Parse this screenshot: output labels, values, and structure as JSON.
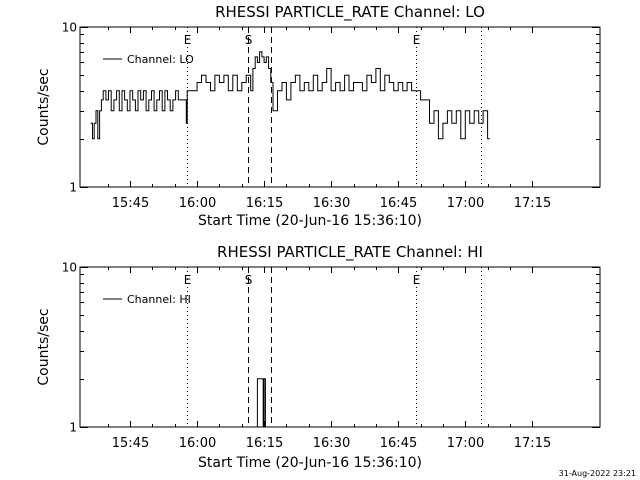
{
  "timestamp": "31-Aug-2022 23:21",
  "chart_data": [
    {
      "type": "line",
      "title": "RHESSI PARTICLE_RATE Channel: LO",
      "xlabel": "Start Time (20-Jun-16 15:36:10)",
      "ylabel": "Counts/sec",
      "yscale": "log",
      "ylim": [
        1,
        10
      ],
      "yticks": [
        {
          "value": 1,
          "label": "1"
        },
        {
          "value": 10,
          "label": "10"
        }
      ],
      "xlim_minutes": [
        36.2,
        100.5
      ],
      "xticks": [
        {
          "value": 45,
          "label": "15:45"
        },
        {
          "value": 60,
          "label": "16:00"
        },
        {
          "value": 75,
          "label": "16:15"
        },
        {
          "value": 90,
          "label": "16:30"
        },
        {
          "value": 105,
          "label": "16:45"
        },
        {
          "value": 120,
          "label": "17:00"
        },
        {
          "value": 135,
          "label": "17:15"
        }
      ],
      "legend": {
        "label": "Channel: LO",
        "position": "top-left"
      },
      "markers": [
        {
          "minute": 57.7,
          "label": "E",
          "style": "dotted"
        },
        {
          "minute": 71.5,
          "label": "S",
          "style": "dashed"
        },
        {
          "minute": 76.5,
          "label": "",
          "style": "dashed"
        },
        {
          "minute": 109.0,
          "label": "E",
          "style": "dotted"
        },
        {
          "minute": 123.5,
          "label": "",
          "style": "dotted"
        }
      ],
      "series": [
        {
          "name": "Channel: LO",
          "x": [
            36.2,
            36.6,
            37.0,
            37.4,
            37.8,
            38.2,
            38.6,
            39.0,
            39.6,
            40.2,
            40.8,
            41.4,
            42.0,
            42.6,
            43.2,
            43.8,
            44.4,
            45.0,
            45.6,
            46.2,
            46.8,
            47.4,
            48.0,
            48.6,
            49.2,
            49.8,
            50.4,
            51.0,
            51.6,
            52.2,
            52.8,
            53.4,
            54.0,
            54.6,
            55.2,
            55.8,
            56.4,
            57.0,
            57.6,
            57.8,
            58.4,
            59.0,
            60.0,
            61.0,
            62.0,
            63.0,
            64.0,
            65.0,
            66.0,
            67.0,
            68.0,
            69.0,
            70.0,
            71.0,
            72.0,
            72.5,
            73.0,
            73.5,
            74.0,
            74.5,
            75.0,
            75.5,
            76.0,
            76.5,
            77.0,
            78.0,
            79.0,
            80.0,
            81.0,
            82.0,
            83.0,
            84.0,
            85.0,
            86.0,
            87.0,
            88.0,
            89.0,
            90.0,
            91.0,
            92.0,
            93.0,
            94.0,
            95.0,
            96.0,
            97.0,
            98.0,
            99.0,
            100.0,
            101.0,
            102.0,
            103.0,
            104.0,
            105.0,
            106.0,
            107.0,
            108.0,
            108.8,
            109.2,
            110.0,
            111.0,
            112.0,
            113.0,
            114.0,
            115.0,
            116.0,
            117.0,
            118.0,
            119.0,
            120.0,
            121.0,
            122.0,
            123.0,
            124.0,
            125.0,
            125.5
          ],
          "y": [
            2.5,
            2.0,
            2.5,
            3.0,
            2.0,
            3.0,
            3.5,
            4.0,
            3.5,
            4.0,
            3.0,
            3.5,
            4.0,
            3.0,
            4.0,
            3.5,
            3.0,
            4.0,
            3.5,
            3.0,
            4.0,
            3.5,
            4.0,
            3.0,
            3.5,
            4.0,
            3.0,
            3.5,
            4.0,
            3.0,
            4.0,
            3.5,
            3.0,
            3.5,
            4.0,
            3.5,
            3.5,
            3.5,
            2.5,
            4.0,
            4.0,
            4.0,
            4.5,
            5.0,
            4.5,
            4.0,
            5.0,
            4.5,
            5.0,
            4.0,
            5.0,
            4.0,
            4.5,
            5.0,
            4.0,
            5.5,
            6.5,
            6.0,
            7.0,
            6.5,
            6.0,
            6.5,
            5.5,
            4.5,
            3.0,
            4.0,
            4.5,
            3.5,
            4.5,
            5.0,
            4.0,
            4.5,
            4.0,
            5.0,
            4.0,
            4.5,
            5.5,
            4.0,
            4.5,
            4.0,
            5.0,
            4.0,
            4.5,
            4.5,
            4.0,
            5.0,
            4.5,
            5.5,
            4.0,
            5.0,
            4.5,
            4.0,
            4.5,
            4.0,
            4.5,
            4.0,
            4.0,
            4.0,
            3.5,
            3.5,
            2.5,
            3.0,
            2.0,
            2.5,
            3.0,
            2.5,
            3.0,
            2.0,
            3.0,
            2.5,
            3.0,
            2.5,
            3.0,
            2.0,
            2.0
          ]
        }
      ]
    },
    {
      "type": "line",
      "title": "RHESSI PARTICLE_RATE Channel: HI",
      "xlabel": "Start Time (20-Jun-16 15:36:10)",
      "ylabel": "Counts/sec",
      "yscale": "log",
      "ylim": [
        1,
        10
      ],
      "yticks": [
        {
          "value": 1,
          "label": "1"
        },
        {
          "value": 10,
          "label": "10"
        }
      ],
      "xlim_minutes": [
        36.2,
        100.5
      ],
      "xticks": [
        {
          "value": 45,
          "label": "15:45"
        },
        {
          "value": 60,
          "label": "16:00"
        },
        {
          "value": 75,
          "label": "16:15"
        },
        {
          "value": 90,
          "label": "16:30"
        },
        {
          "value": 105,
          "label": "16:45"
        },
        {
          "value": 120,
          "label": "17:00"
        },
        {
          "value": 135,
          "label": "17:15"
        }
      ],
      "legend": {
        "label": "Channel: HI",
        "position": "top-left"
      },
      "markers": [
        {
          "minute": 57.7,
          "label": "E",
          "style": "dotted"
        },
        {
          "minute": 71.5,
          "label": "S",
          "style": "dashed"
        },
        {
          "minute": 76.5,
          "label": "",
          "style": "dashed"
        },
        {
          "minute": 109.0,
          "label": "E",
          "style": "dotted"
        },
        {
          "minute": 123.5,
          "label": "",
          "style": "dotted"
        }
      ],
      "series": [
        {
          "name": "Channel: HI",
          "x": [
            73.4,
            73.5,
            74.0,
            74.5,
            74.8,
            75.0,
            75.2,
            75.3
          ],
          "y": [
            1.0,
            2.0,
            2.0,
            2.0,
            1.0,
            2.0,
            2.0,
            1.0
          ]
        }
      ]
    }
  ]
}
